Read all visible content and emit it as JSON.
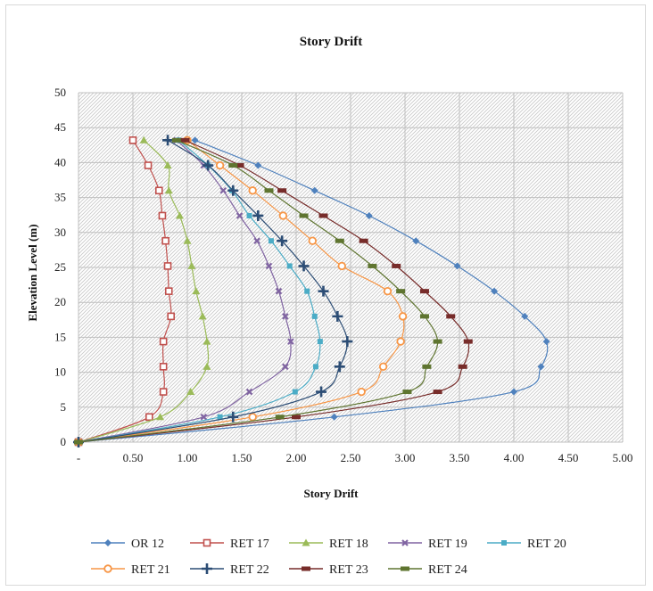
{
  "chart_data": {
    "type": "line",
    "title": "Story Drift",
    "xlabel": "Story Drift",
    "ylabel": "Elevation Level (m)",
    "xlim": [
      0,
      5
    ],
    "ylim": [
      0,
      50
    ],
    "x_ticks": [
      0,
      0.5,
      1,
      1.5,
      2,
      2.5,
      3,
      3.5,
      4,
      4.5,
      5
    ],
    "x_tick_labels": [
      "-",
      "0.50",
      "1.00",
      "1.50",
      "2.00",
      "2.50",
      "3.00",
      "3.50",
      "4.00",
      "4.50",
      "5.00"
    ],
    "y_ticks": [
      0,
      5,
      10,
      15,
      20,
      25,
      30,
      35,
      40,
      45,
      50
    ],
    "y_tick_labels": [
      "0",
      "5",
      "10",
      "15",
      "20",
      "25",
      "30",
      "35",
      "40",
      "45",
      "50"
    ],
    "grid": true,
    "legend_position": "bottom",
    "elevations": [
      0,
      3.6,
      7.2,
      10.8,
      14.4,
      18,
      21.6,
      25.2,
      28.8,
      32.4,
      36,
      39.6,
      43.2
    ],
    "series": [
      {
        "name": "OR 12",
        "color": "#4f81bd",
        "marker": "diamond",
        "values": [
          0,
          2.35,
          4.0,
          4.25,
          4.3,
          4.1,
          3.82,
          3.48,
          3.1,
          2.67,
          2.17,
          1.65,
          1.07
        ]
      },
      {
        "name": "RET 17",
        "color": "#c0504d",
        "marker": "square-open",
        "values": [
          0,
          0.65,
          0.78,
          0.78,
          0.78,
          0.85,
          0.83,
          0.82,
          0.8,
          0.77,
          0.74,
          0.64,
          0.5
        ]
      },
      {
        "name": "RET 18",
        "color": "#9bbb59",
        "marker": "triangle",
        "values": [
          0,
          0.75,
          1.03,
          1.18,
          1.18,
          1.14,
          1.08,
          1.04,
          1.0,
          0.93,
          0.83,
          0.82,
          0.6
        ]
      },
      {
        "name": "RET 19",
        "color": "#8064a2",
        "marker": "x",
        "values": [
          0,
          1.15,
          1.57,
          1.9,
          1.95,
          1.9,
          1.84,
          1.75,
          1.64,
          1.48,
          1.33,
          1.15,
          0.9
        ]
      },
      {
        "name": "RET 20",
        "color": "#4bacc6",
        "marker": "square",
        "values": [
          0,
          1.3,
          1.99,
          2.18,
          2.22,
          2.17,
          2.1,
          1.94,
          1.77,
          1.57,
          1.41,
          1.19,
          0.92
        ]
      },
      {
        "name": "RET 21",
        "color": "#f79646",
        "marker": "circle-open",
        "values": [
          0,
          1.6,
          2.6,
          2.8,
          2.96,
          2.98,
          2.84,
          2.42,
          2.15,
          1.88,
          1.6,
          1.3,
          1.0
        ]
      },
      {
        "name": "RET 22",
        "color": "#2c4d75",
        "marker": "plus",
        "values": [
          0,
          1.42,
          2.23,
          2.4,
          2.47,
          2.38,
          2.25,
          2.07,
          1.87,
          1.65,
          1.42,
          1.19,
          0.82
        ]
      },
      {
        "name": "RET 23",
        "color": "#772c2a",
        "marker": "bar",
        "values": [
          0,
          2.0,
          3.3,
          3.53,
          3.58,
          3.42,
          3.18,
          2.92,
          2.62,
          2.25,
          1.87,
          1.48,
          0.98
        ]
      },
      {
        "name": "RET 24",
        "color": "#5f7530",
        "marker": "bar",
        "values": [
          0,
          1.85,
          3.02,
          3.2,
          3.3,
          3.18,
          2.96,
          2.7,
          2.4,
          2.07,
          1.75,
          1.42,
          0.9
        ]
      }
    ]
  }
}
